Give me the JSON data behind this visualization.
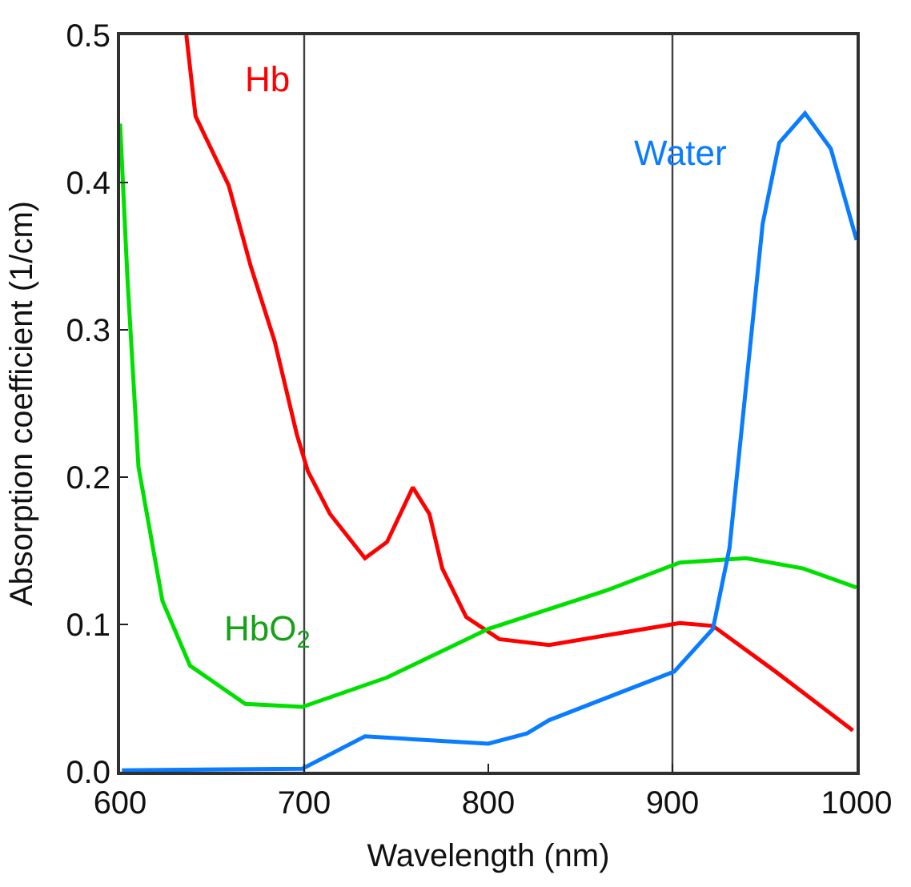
{
  "chart_data": {
    "type": "line",
    "xlabel": "Wavelength (nm)",
    "ylabel": "Absorption coefficient (1/cm)",
    "xlim": [
      600,
      1000
    ],
    "xticks": [
      600,
      700,
      800,
      900,
      1000
    ],
    "ylim": [
      0,
      0.5
    ],
    "yticks": [
      {
        "value": 0,
        "label": "0.0"
      },
      {
        "value": 0.1,
        "label": "0.1"
      },
      {
        "value": 0.2,
        "label": "0.2"
      },
      {
        "value": 0.3,
        "label": "0.3"
      },
      {
        "value": 0.4,
        "label": "0.4"
      },
      {
        "value": 0.5,
        "label": "0.5"
      }
    ],
    "grid": false,
    "legend": false,
    "marker": "none",
    "line_style": "solid",
    "ref_lines": [
      {
        "axis": "x",
        "value": 700,
        "color": "#404040"
      },
      {
        "axis": "x",
        "value": 900,
        "color": "#404040"
      }
    ],
    "series": [
      {
        "name": "Hb",
        "color": "#ff0000",
        "x": [
          636,
          641,
          659,
          671,
          684,
          696,
          702,
          714,
          733,
          745,
          759,
          768,
          775,
          788,
          806,
          833,
          904,
          922,
          956,
          998
        ],
        "values": [
          0.5,
          0.445,
          0.398,
          0.343,
          0.292,
          0.229,
          0.204,
          0.175,
          0.145,
          0.156,
          0.193,
          0.175,
          0.138,
          0.105,
          0.09,
          0.086,
          0.101,
          0.099,
          0.068,
          0.028
        ]
      },
      {
        "name": "HbO$_{2}$",
        "color": "#00e000",
        "x": [
          600,
          604,
          610,
          623,
          638,
          668,
          699,
          745,
          800,
          864,
          904,
          940,
          971,
          1000
        ],
        "values": [
          0.44,
          0.335,
          0.207,
          0.116,
          0.072,
          0.046,
          0.044,
          0.064,
          0.097,
          0.123,
          0.142,
          0.145,
          0.138,
          0.125
        ]
      },
      {
        "name": "Water",
        "color": "#0a7cff",
        "x": [
          601,
          699,
          733,
          800,
          821,
          833,
          901,
          922,
          931,
          940,
          949,
          958,
          972,
          986,
          1000
        ],
        "values": [
          0.001,
          0.002,
          0.024,
          0.019,
          0.026,
          0.035,
          0.068,
          0.097,
          0.152,
          0.262,
          0.372,
          0.427,
          0.447,
          0.423,
          0.361
        ]
      }
    ]
  }
}
